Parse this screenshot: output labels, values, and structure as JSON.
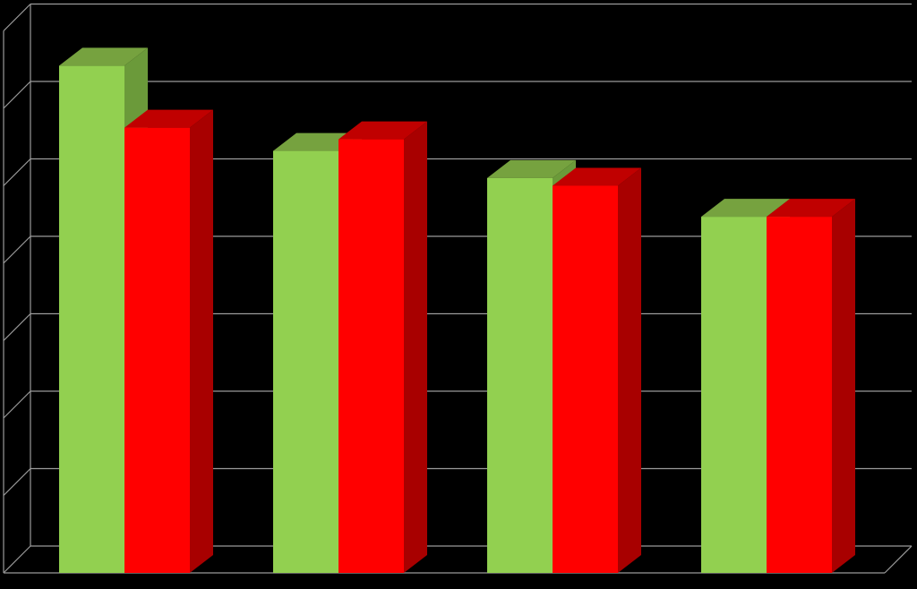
{
  "chart_data": {
    "type": "bar",
    "style": "3d-clustered-column",
    "title": "",
    "xlabel": "",
    "ylabel": "",
    "categories": [
      "",
      "",
      "",
      ""
    ],
    "ylim": [
      0,
      7
    ],
    "gridlines": 7,
    "grid": true,
    "legend": "none",
    "background": "#000000",
    "series": [
      {
        "values": [
          6.55,
          5.45,
          5.1,
          4.6
        ],
        "color": "#92d050",
        "side_color": "#6b9a3a",
        "top_color": "#76a23f"
      },
      {
        "values": [
          5.75,
          5.6,
          5.0,
          4.6
        ],
        "color": "#ff0000",
        "side_color": "#a80000",
        "top_color": "#c00000"
      }
    ]
  }
}
